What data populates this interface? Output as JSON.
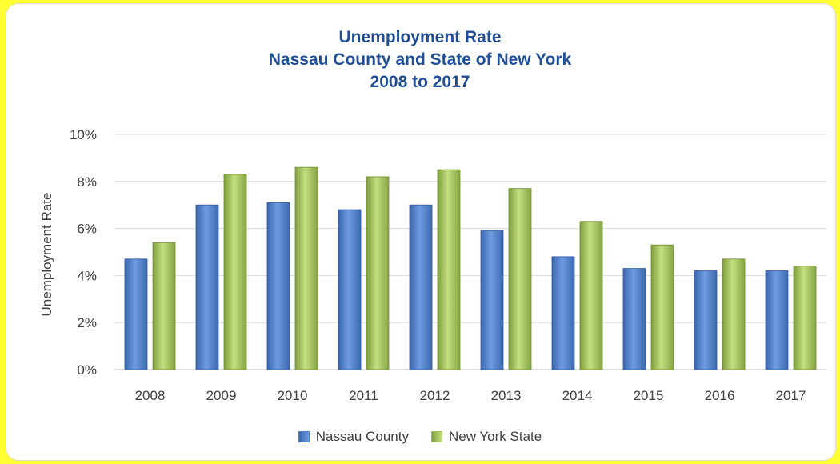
{
  "chart_data": {
    "type": "bar",
    "title": [
      "Unemployment Rate",
      "Nassau County and State of New York",
      "2008 to 2017"
    ],
    "ylabel": "Unemployment Rate",
    "xlabel": "",
    "categories": [
      "2008",
      "2009",
      "2010",
      "2011",
      "2012",
      "2013",
      "2014",
      "2015",
      "2016",
      "2017"
    ],
    "series": [
      {
        "name": "Nassau County",
        "color": "#4f7fc7",
        "values": [
          4.7,
          7.0,
          7.1,
          6.8,
          7.0,
          5.9,
          4.8,
          4.3,
          4.2,
          4.2
        ]
      },
      {
        "name": "New York State",
        "color": "#9bbb59",
        "values": [
          5.4,
          8.3,
          8.6,
          8.2,
          8.5,
          7.7,
          6.3,
          5.3,
          4.7,
          4.4
        ]
      }
    ],
    "ylim": [
      0,
      10
    ],
    "yticks": [
      "0%",
      "2%",
      "4%",
      "6%",
      "8%",
      "10%"
    ],
    "ytick_values": [
      0,
      2,
      4,
      6,
      8,
      10
    ],
    "grid": true,
    "legend_position": "bottom"
  }
}
